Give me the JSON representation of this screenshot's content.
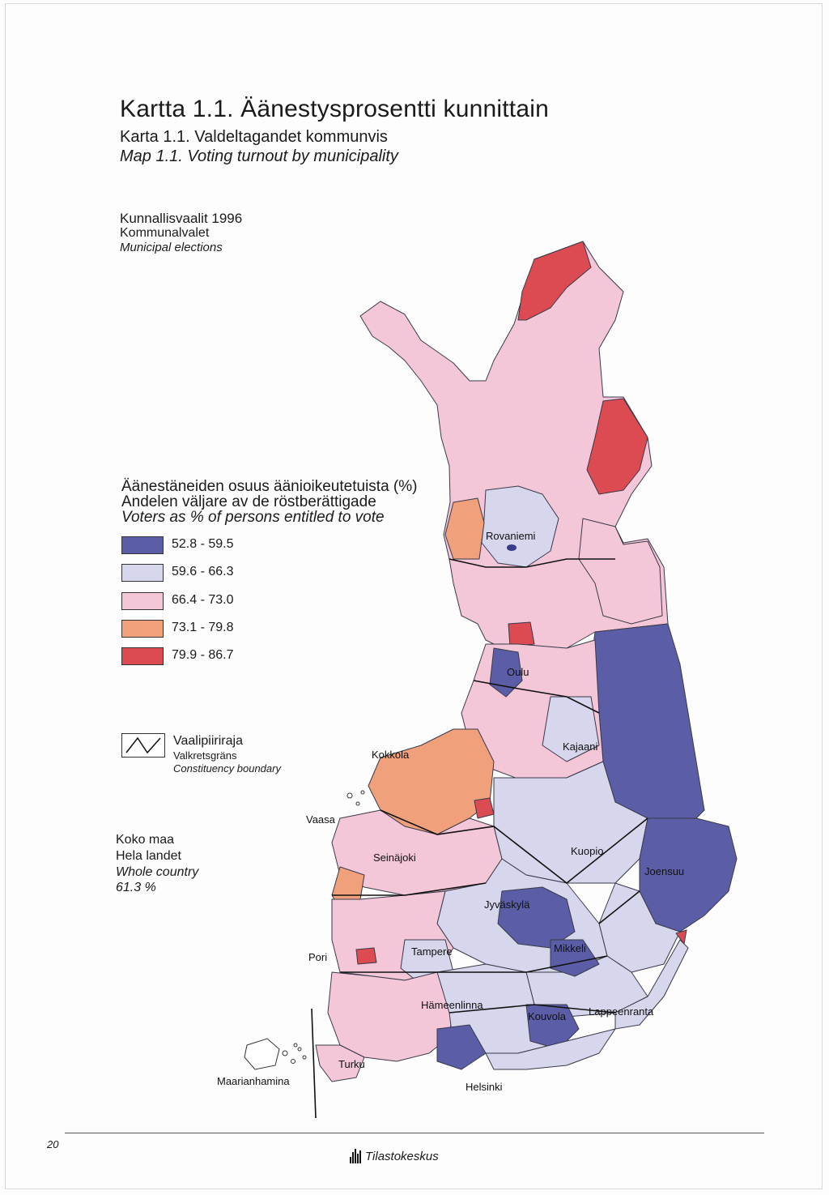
{
  "titles": {
    "fi": "Kartta 1.1. Äänestysprosentti kunnittain",
    "sv": "Karta 1.1. Valdeltagandet kommunvis",
    "en": "Map 1.1. Voting turnout by municipality"
  },
  "election": {
    "fi": "Kunnallisvaalit 1996",
    "sv": "Kommunalvalet",
    "en": "Municipal elections"
  },
  "legend": {
    "title_fi": "Äänestäneiden osuus äänioikeutetuista (%)",
    "title_sv": "Andelen väljare av de röstberättigade",
    "title_en": "Voters as % of persons entitled to vote",
    "classes": [
      {
        "label": "52.8 - 59.5",
        "color": "#5b5ea6"
      },
      {
        "label": "59.6 - 66.3",
        "color": "#d6d6ec"
      },
      {
        "label": "66.4 - 73.0",
        "color": "#f3c6d8"
      },
      {
        "label": "73.1 - 79.8",
        "color": "#f0a07a"
      },
      {
        "label": "79.9 - 86.7",
        "color": "#dc4a52"
      }
    ]
  },
  "boundary": {
    "fi": "Vaalipiiriraja",
    "sv": "Valkretsgräns",
    "en": "Constituency boundary"
  },
  "whole": {
    "fi": "Koko maa",
    "sv": "Hela landet",
    "en": "Whole country",
    "value": "61.3 %"
  },
  "cities": {
    "rovaniemi": "Rovaniemi",
    "oulu": "Oulu",
    "kajaani": "Kajaani",
    "kokkola": "Kokkola",
    "vaasa": "Vaasa",
    "seinajoki": "Seinäjoki",
    "kuopio": "Kuopio",
    "joensuu": "Joensuu",
    "jyvaskyla": "Jyväskylä",
    "pori": "Pori",
    "tampere": "Tampere",
    "mikkeli": "Mikkeli",
    "hameenlinna": "Hämeenlinna",
    "kouvola": "Kouvola",
    "lappeenranta": "Lappeenranta",
    "turku": "Turku",
    "maarianhamina": "Maarianhamina",
    "helsinki": "Helsinki"
  },
  "footer": {
    "page_number": "20",
    "publisher": "Tilastokeskus"
  }
}
